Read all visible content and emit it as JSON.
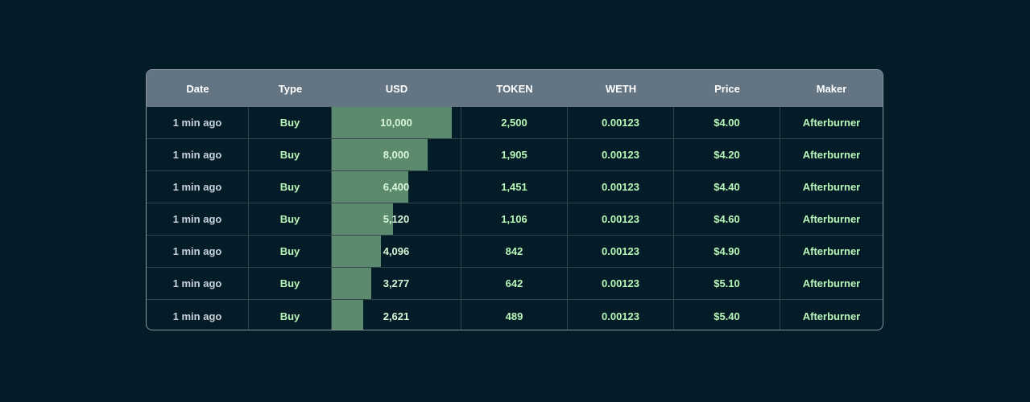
{
  "table": {
    "headers": [
      "Date",
      "Type",
      "USD",
      "TOKEN",
      "WETH",
      "Price",
      "Maker"
    ],
    "usd_max": 10000,
    "rows": [
      {
        "date": "1 min ago",
        "type": "Buy",
        "usd": "10,000",
        "usd_value": 10000,
        "token": "2,500",
        "weth": "0.00123",
        "price": "$4.00",
        "maker": "Afterburner"
      },
      {
        "date": "1 min ago",
        "type": "Buy",
        "usd": "8,000",
        "usd_value": 8000,
        "token": "1,905",
        "weth": "0.00123",
        "price": "$4.20",
        "maker": "Afterburner"
      },
      {
        "date": "1 min ago",
        "type": "Buy",
        "usd": "6,400",
        "usd_value": 6400,
        "token": "1,451",
        "weth": "0.00123",
        "price": "$4.40",
        "maker": "Afterburner"
      },
      {
        "date": "1 min ago",
        "type": "Buy",
        "usd": "5,120",
        "usd_value": 5120,
        "token": "1,106",
        "weth": "0.00123",
        "price": "$4.60",
        "maker": "Afterburner"
      },
      {
        "date": "1 min ago",
        "type": "Buy",
        "usd": "4,096",
        "usd_value": 4096,
        "token": "842",
        "weth": "0.00123",
        "price": "$4.90",
        "maker": "Afterburner"
      },
      {
        "date": "1 min ago",
        "type": "Buy",
        "usd": "3,277",
        "usd_value": 3277,
        "token": "642",
        "weth": "0.00123",
        "price": "$5.10",
        "maker": "Afterburner"
      },
      {
        "date": "1 min ago",
        "type": "Buy",
        "usd": "2,621",
        "usd_value": 2621,
        "token": "489",
        "weth": "0.00123",
        "price": "$5.40",
        "maker": "Afterburner"
      }
    ]
  },
  "colors": {
    "background": "#041b28",
    "header_background": "#637483",
    "usd_bar": "#5b8b6c",
    "value_text": "#b8f7b8"
  }
}
